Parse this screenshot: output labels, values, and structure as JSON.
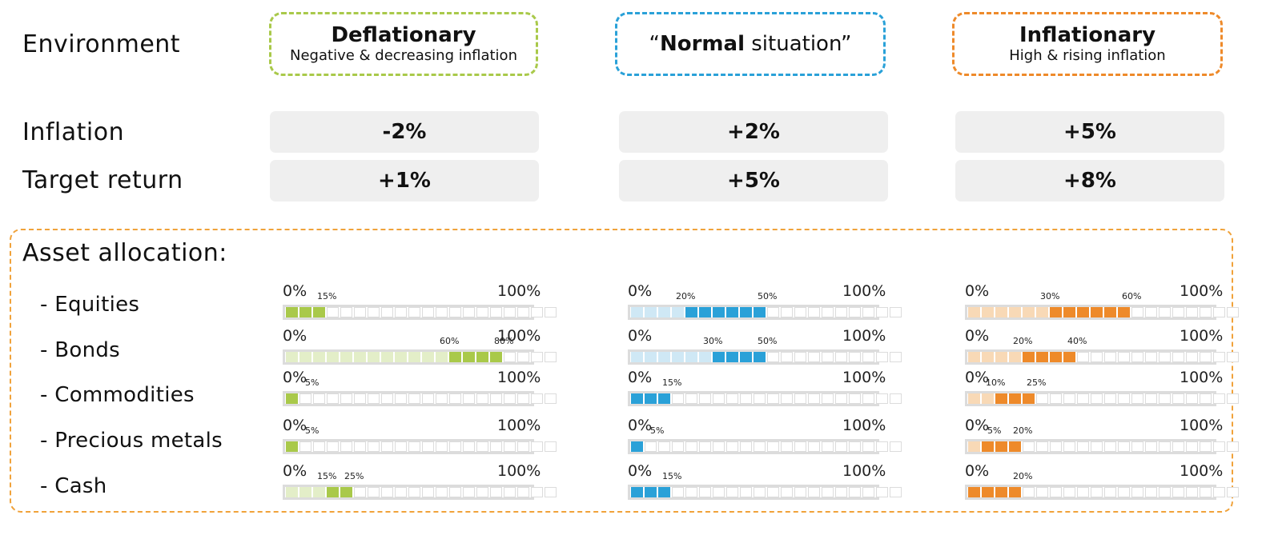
{
  "labels": {
    "environment": "Environment",
    "inflation": "Inflation",
    "target_return": "Target return",
    "asset_allocation": "Asset allocation:"
  },
  "scenarios": [
    {
      "title": "Deflationary",
      "subtitle": "Negative & decreasing inflation",
      "inflation": "-2%",
      "target_return": "+1%",
      "color": "#a9c94a",
      "light_color": "#e3eec8",
      "allocations": [
        {
          "min_label": "15%",
          "max": 0.15
        },
        {
          "min_label": "60%",
          "max_label": "80%",
          "min": 0.6,
          "max": 0.8
        },
        {
          "min_label": "5%",
          "max": 0.05
        },
        {
          "min_label": "5%",
          "max": 0.05
        },
        {
          "min_label": "15%",
          "max_label": "25%",
          "min": 0.15,
          "max": 0.25
        }
      ]
    },
    {
      "title_bold": "Normal",
      "title_rest": " situation”",
      "title_open_quote": "“",
      "inflation": "+2%",
      "target_return": "+5%",
      "color": "#2aa1d8",
      "light_color": "#cfe8f5",
      "allocations": [
        {
          "min_label": "20%",
          "max_label": "50%",
          "min": 0.2,
          "max": 0.5
        },
        {
          "min_label": "30%",
          "max_label": "50%",
          "min": 0.3,
          "max": 0.5
        },
        {
          "min_label": "15%",
          "max": 0.15
        },
        {
          "min_label": "5%",
          "max": 0.05
        },
        {
          "min_label": "15%",
          "max": 0.15
        }
      ]
    },
    {
      "title": "Inflationary",
      "subtitle": "High & rising inflation",
      "inflation": "+5%",
      "target_return": "+8%",
      "color": "#ee8a2a",
      "light_color": "#f8d9b6",
      "allocations": [
        {
          "min_label": "30%",
          "max_label": "60%",
          "min": 0.3,
          "max": 0.6
        },
        {
          "min_label": "20%",
          "max_label": "40%",
          "min": 0.2,
          "max": 0.4
        },
        {
          "min_label": "10%",
          "max_label": "25%",
          "min": 0.1,
          "max": 0.25
        },
        {
          "min_label": "5%",
          "max_label": "20%",
          "min": 0.05,
          "max": 0.2
        },
        {
          "min_label": "20%",
          "max": 0.2
        }
      ]
    }
  ],
  "assets": [
    {
      "label": "- Equities"
    },
    {
      "label": "- Bonds"
    },
    {
      "label": "- Commodities"
    },
    {
      "label": "- Precious metals"
    },
    {
      "label": "- Cash"
    }
  ],
  "scale": {
    "zero": "0%",
    "full": "100%"
  }
}
